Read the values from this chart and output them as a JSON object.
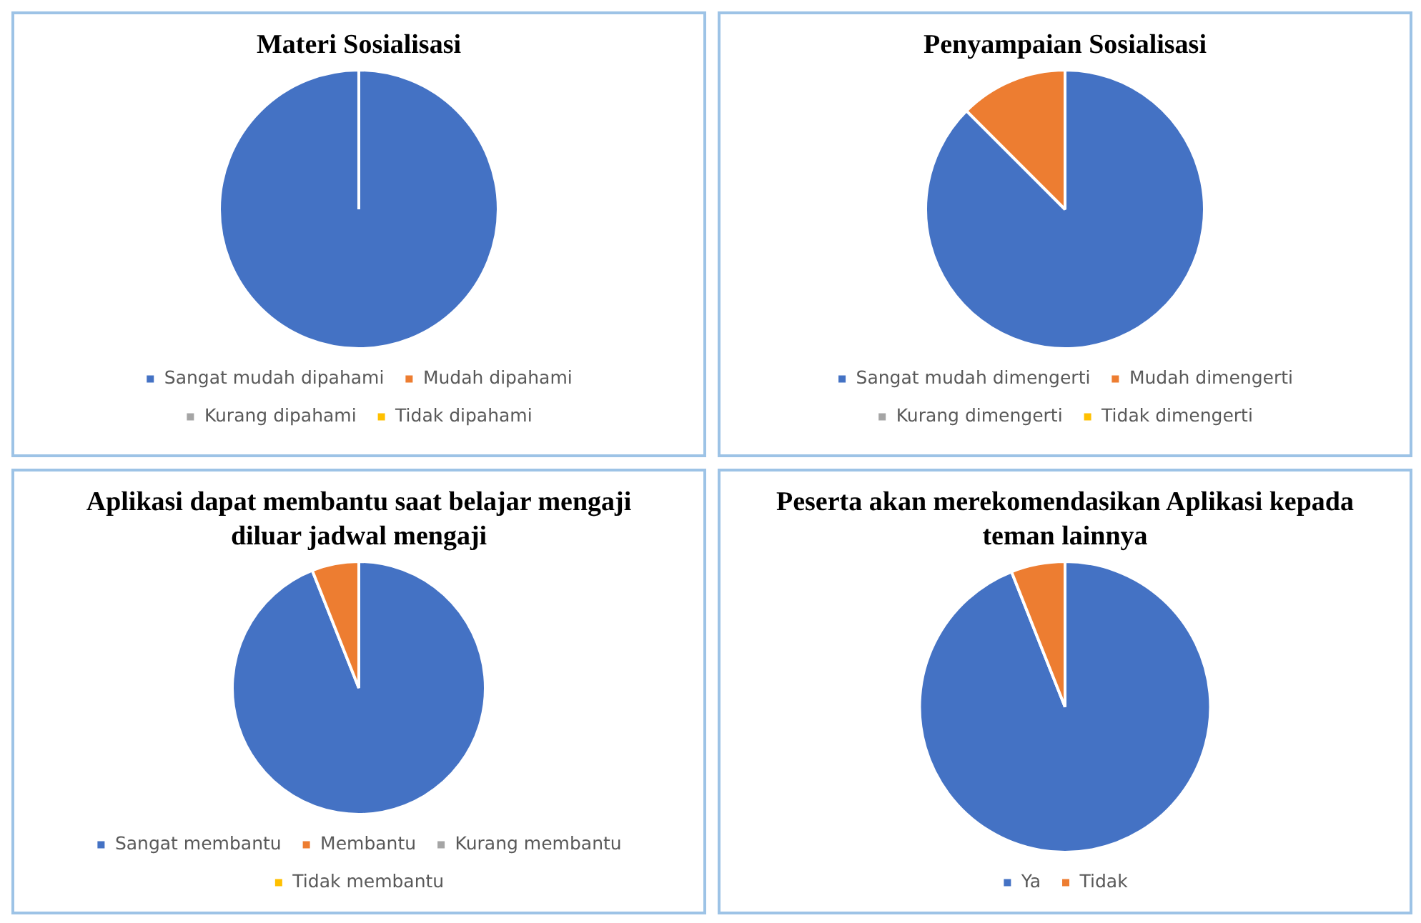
{
  "chart_data": [
    {
      "type": "pie",
      "title": "Materi Sosialisasi",
      "categories": [
        "Sangat mudah dipahami",
        "Mudah dipahami",
        "Kurang dipahami",
        "Tidak dipahami"
      ],
      "values": [
        100,
        0,
        0,
        0
      ],
      "colors": [
        "#4472c4",
        "#ed7d31",
        "#a5a5a5",
        "#ffc000"
      ],
      "legend": "bottom"
    },
    {
      "type": "pie",
      "title": "Penyampaian Sosialisasi",
      "categories": [
        "Sangat mudah dimengerti",
        "Mudah dimengerti",
        "Kurang dimengerti",
        "Tidak dimengerti"
      ],
      "values": [
        87.5,
        12.5,
        0,
        0
      ],
      "colors": [
        "#4472c4",
        "#ed7d31",
        "#a5a5a5",
        "#ffc000"
      ],
      "legend": "bottom"
    },
    {
      "type": "pie",
      "title": "Aplikasi dapat membantu saat belajar mengaji diluar jadwal mengaji",
      "categories": [
        "Sangat membantu",
        "Membantu",
        "Kurang membantu",
        "Tidak membantu"
      ],
      "values": [
        94,
        6,
        0,
        0
      ],
      "colors": [
        "#4472c4",
        "#ed7d31",
        "#a5a5a5",
        "#ffc000"
      ],
      "legend": "bottom"
    },
    {
      "type": "pie",
      "title": "Peserta akan merekomendasikan Aplikasi kepada teman lainnya",
      "categories": [
        "Ya",
        "Tidak"
      ],
      "values": [
        94,
        6
      ],
      "colors": [
        "#4472c4",
        "#ed7d31"
      ],
      "legend": "bottom"
    }
  ]
}
